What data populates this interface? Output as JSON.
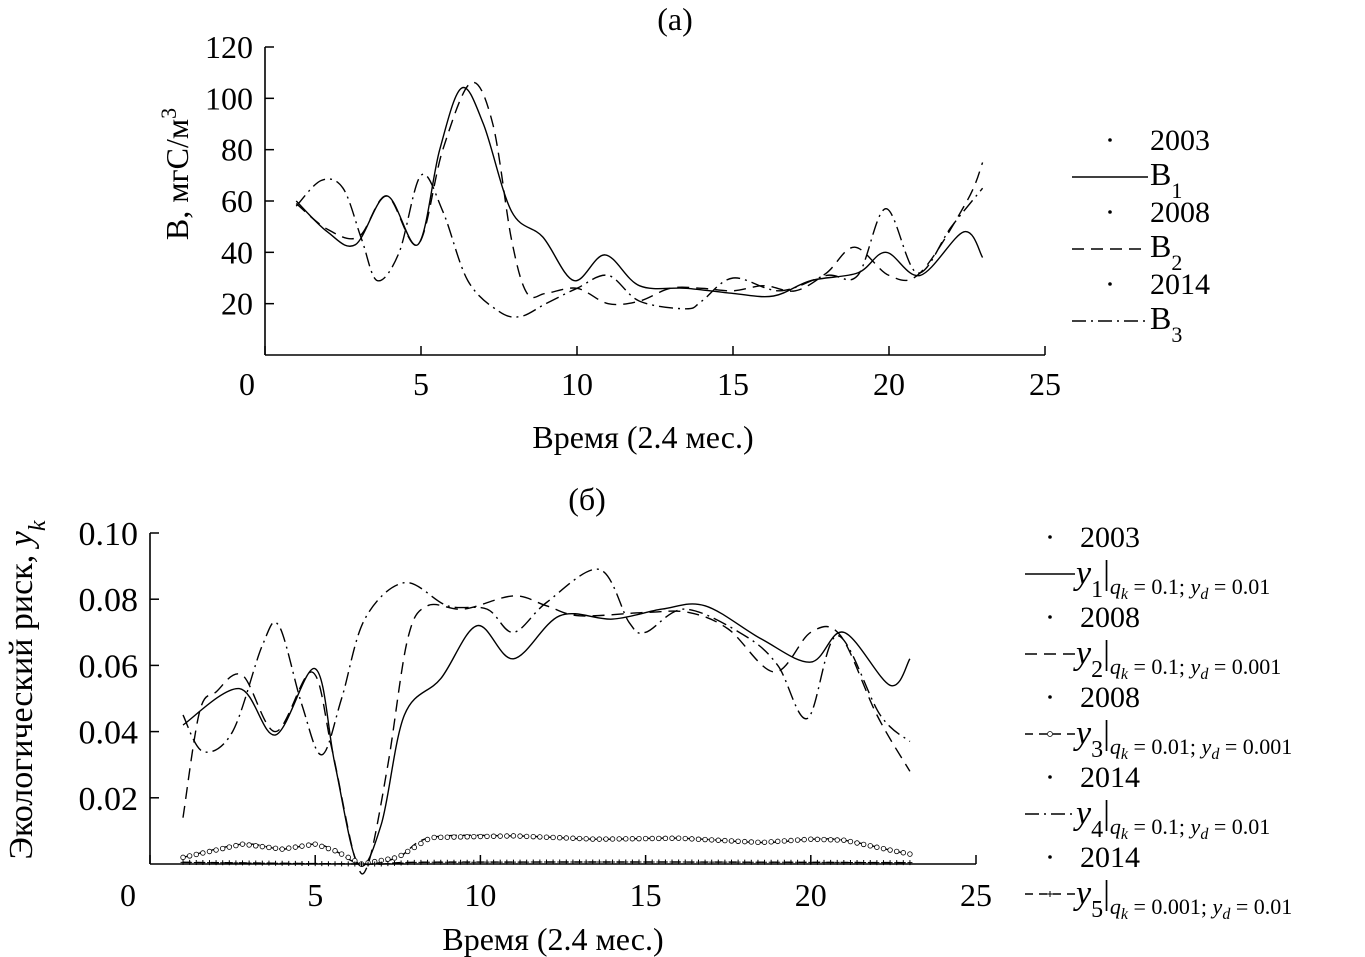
{
  "chart_data": [
    {
      "type": "line",
      "panel_label": "(а)",
      "xlabel": "Время (2.4 мес.)",
      "ylabel": "B, мгС/м",
      "ylabel_sup": "3",
      "xlim": [
        0,
        25
      ],
      "ylim": [
        0,
        120
      ],
      "xticks": [
        "0",
        "5",
        "10",
        "15",
        "20",
        "25"
      ],
      "yticks": [
        "20",
        "40",
        "60",
        "80",
        "100",
        "120"
      ],
      "legend": [
        {
          "label": "2003",
          "style": "dot"
        },
        {
          "label": "B",
          "sub": "1",
          "style": "solid"
        },
        {
          "label": "2008",
          "style": "dot"
        },
        {
          "label": "B",
          "sub": "2",
          "style": "dashed"
        },
        {
          "label": "2014",
          "style": "dot"
        },
        {
          "label": "B",
          "sub": "3",
          "style": "dashdot"
        }
      ],
      "series": [
        {
          "name": "B1",
          "style": "solid",
          "points": [
            [
              1.0,
              60
            ],
            [
              2,
              48
            ],
            [
              2.9,
              43
            ],
            [
              3.9,
              62
            ],
            [
              4.9,
              43
            ],
            [
              5.6,
              80
            ],
            [
              6.3,
              104
            ],
            [
              7.0,
              90
            ],
            [
              7.9,
              56
            ],
            [
              8.9,
              46
            ],
            [
              9.9,
              29
            ],
            [
              10.9,
              39
            ],
            [
              12,
              27
            ],
            [
              13.5,
              26
            ],
            [
              15,
              24
            ],
            [
              16.3,
              23
            ],
            [
              17.5,
              29
            ],
            [
              19,
              32
            ],
            [
              19.9,
              40
            ],
            [
              21,
              31
            ],
            [
              22.4,
              48
            ],
            [
              23.0,
              38
            ]
          ]
        },
        {
          "name": "B2",
          "style": "dashed",
          "points": [
            [
              1.0,
              59
            ],
            [
              2,
              49
            ],
            [
              3,
              46
            ],
            [
              3.9,
              62
            ],
            [
              4.9,
              43
            ],
            [
              5.7,
              80
            ],
            [
              6.6,
              106
            ],
            [
              7.3,
              90
            ],
            [
              7.9,
              45
            ],
            [
              8.4,
              24
            ],
            [
              9,
              24
            ],
            [
              10,
              26
            ],
            [
              11,
              20
            ],
            [
              12,
              21
            ],
            [
              13,
              26
            ],
            [
              14,
              26
            ],
            [
              15,
              25
            ],
            [
              16,
              27
            ],
            [
              17,
              25
            ],
            [
              18,
              32
            ],
            [
              18.9,
              42
            ],
            [
              20,
              31
            ],
            [
              21,
              32
            ],
            [
              22.5,
              60
            ],
            [
              23.0,
              75
            ]
          ]
        },
        {
          "name": "B3",
          "style": "dashdot",
          "points": [
            [
              1.0,
              58
            ],
            [
              1.8,
              68
            ],
            [
              2.5,
              65
            ],
            [
              3.1,
              45
            ],
            [
              3.6,
              29
            ],
            [
              4.3,
              40
            ],
            [
              5.0,
              70
            ],
            [
              5.7,
              56
            ],
            [
              6.5,
              29
            ],
            [
              7.5,
              17
            ],
            [
              8.2,
              15
            ],
            [
              9,
              20
            ],
            [
              10,
              26
            ],
            [
              11.0,
              31
            ],
            [
              12,
              21
            ],
            [
              13.5,
              18
            ],
            [
              14,
              21
            ],
            [
              15,
              30
            ],
            [
              16.5,
              25
            ],
            [
              18,
              31
            ],
            [
              19,
              31
            ],
            [
              19.9,
              57
            ],
            [
              20.9,
              32
            ],
            [
              22,
              50
            ],
            [
              23.0,
              65
            ]
          ]
        }
      ]
    },
    {
      "type": "line",
      "panel_label": "(б)",
      "xlabel": "Время (2.4 мес.)",
      "ylabel": "Экологический риск, ",
      "ylabel_var": "y",
      "ylabel_sub": "k",
      "xlim": [
        0,
        25
      ],
      "ylim": [
        0,
        0.1
      ],
      "xticks": [
        "0",
        "5",
        "10",
        "15",
        "20",
        "25"
      ],
      "yticks": [
        "0.02",
        "0.04",
        "0.06",
        "0.08",
        "0.10"
      ],
      "legend": [
        {
          "label": "2003",
          "style": "dot"
        },
        {
          "var": "y",
          "sub": "1",
          "qk": "0.1",
          "yd": "0.01",
          "style": "solid"
        },
        {
          "label": "2008",
          "style": "dot"
        },
        {
          "var": "y",
          "sub": "2",
          "qk": "0.1",
          "yd": "0.001",
          "style": "dashed"
        },
        {
          "label": "2008",
          "style": "dot"
        },
        {
          "var": "y",
          "sub": "3",
          "qk": "0.01",
          "yd": "0.001",
          "style": "dash-circle"
        },
        {
          "label": "2014",
          "style": "dot"
        },
        {
          "var": "y",
          "sub": "4",
          "qk": "0.1",
          "yd": "0.01",
          "style": "dashdot"
        },
        {
          "label": "2014",
          "style": "dot"
        },
        {
          "var": "y",
          "sub": "5",
          "qk": "0.001",
          "yd": "0.01",
          "style": "dash-plus"
        }
      ],
      "series": [
        {
          "name": "y1",
          "style": "solid",
          "points": [
            [
              1.0,
              0.042
            ],
            [
              2.7,
              0.053
            ],
            [
              3.8,
              0.039
            ],
            [
              5.0,
              0.059
            ],
            [
              5.6,
              0.03
            ],
            [
              6.3,
              0.0
            ],
            [
              7,
              0.012
            ],
            [
              7.7,
              0.045
            ],
            [
              8.8,
              0.056
            ],
            [
              9.9,
              0.072
            ],
            [
              11,
              0.062
            ],
            [
              12.4,
              0.075
            ],
            [
              14,
              0.074
            ],
            [
              15.5,
              0.077
            ],
            [
              16.8,
              0.078
            ],
            [
              18.5,
              0.068
            ],
            [
              20,
              0.061
            ],
            [
              21,
              0.07
            ],
            [
              22.4,
              0.054
            ],
            [
              23.0,
              0.062
            ]
          ]
        },
        {
          "name": "y2",
          "style": "dashed",
          "points": [
            [
              1.0,
              0.014
            ],
            [
              1.5,
              0.046
            ],
            [
              2,
              0.052
            ],
            [
              2.8,
              0.057
            ],
            [
              3.8,
              0.04
            ],
            [
              4.9,
              0.058
            ],
            [
              5.5,
              0.035
            ],
            [
              6.2,
              0.002
            ],
            [
              6.6,
              0.0
            ],
            [
              7.2,
              0.03
            ],
            [
              7.8,
              0.068
            ],
            [
              8.4,
              0.078
            ],
            [
              9.5,
              0.077
            ],
            [
              11,
              0.081
            ],
            [
              12,
              0.078
            ],
            [
              13,
              0.075
            ],
            [
              15,
              0.076
            ],
            [
              16.3,
              0.076
            ],
            [
              17.5,
              0.071
            ],
            [
              18.9,
              0.058
            ],
            [
              20,
              0.07
            ],
            [
              20.9,
              0.069
            ],
            [
              22,
              0.045
            ],
            [
              23.0,
              0.028
            ]
          ]
        },
        {
          "name": "y3",
          "style": "dash-circle",
          "points": [
            [
              1.0,
              0.002
            ],
            [
              2.8,
              0.006
            ],
            [
              4,
              0.0045
            ],
            [
              5,
              0.006
            ],
            [
              5.6,
              0.004
            ],
            [
              6.4,
              0.0
            ],
            [
              7.5,
              0.002
            ],
            [
              8.5,
              0.008
            ],
            [
              11,
              0.0085
            ],
            [
              13.5,
              0.0075
            ],
            [
              16,
              0.0078
            ],
            [
              18.5,
              0.0065
            ],
            [
              20,
              0.0075
            ],
            [
              21,
              0.0072
            ],
            [
              22.5,
              0.004
            ],
            [
              23.0,
              0.003
            ]
          ]
        },
        {
          "name": "y4",
          "style": "dashdot",
          "points": [
            [
              1.0,
              0.045
            ],
            [
              1.6,
              0.034
            ],
            [
              2.5,
              0.04
            ],
            [
              3.4,
              0.066
            ],
            [
              3.9,
              0.072
            ],
            [
              4.6,
              0.048
            ],
            [
              5.2,
              0.033
            ],
            [
              5.8,
              0.05
            ],
            [
              6.5,
              0.074
            ],
            [
              7.7,
              0.085
            ],
            [
              9.0,
              0.078
            ],
            [
              10.2,
              0.077
            ],
            [
              11,
              0.07
            ],
            [
              12,
              0.079
            ],
            [
              13.6,
              0.089
            ],
            [
              14.5,
              0.073
            ],
            [
              15,
              0.07
            ],
            [
              16.2,
              0.077
            ],
            [
              18.0,
              0.069
            ],
            [
              19,
              0.06
            ],
            [
              19.9,
              0.044
            ],
            [
              20.8,
              0.069
            ],
            [
              22.1,
              0.045
            ],
            [
              23.0,
              0.037
            ]
          ]
        },
        {
          "name": "y5",
          "style": "dash-plus",
          "points": [
            [
              1.0,
              0.0005
            ],
            [
              6.3,
              0.0
            ],
            [
              7,
              0.0
            ],
            [
              8,
              0.0005
            ],
            [
              12,
              0.0006
            ],
            [
              16,
              0.0006
            ],
            [
              20,
              0.0005
            ],
            [
              23.0,
              0.0004
            ]
          ]
        }
      ]
    }
  ]
}
